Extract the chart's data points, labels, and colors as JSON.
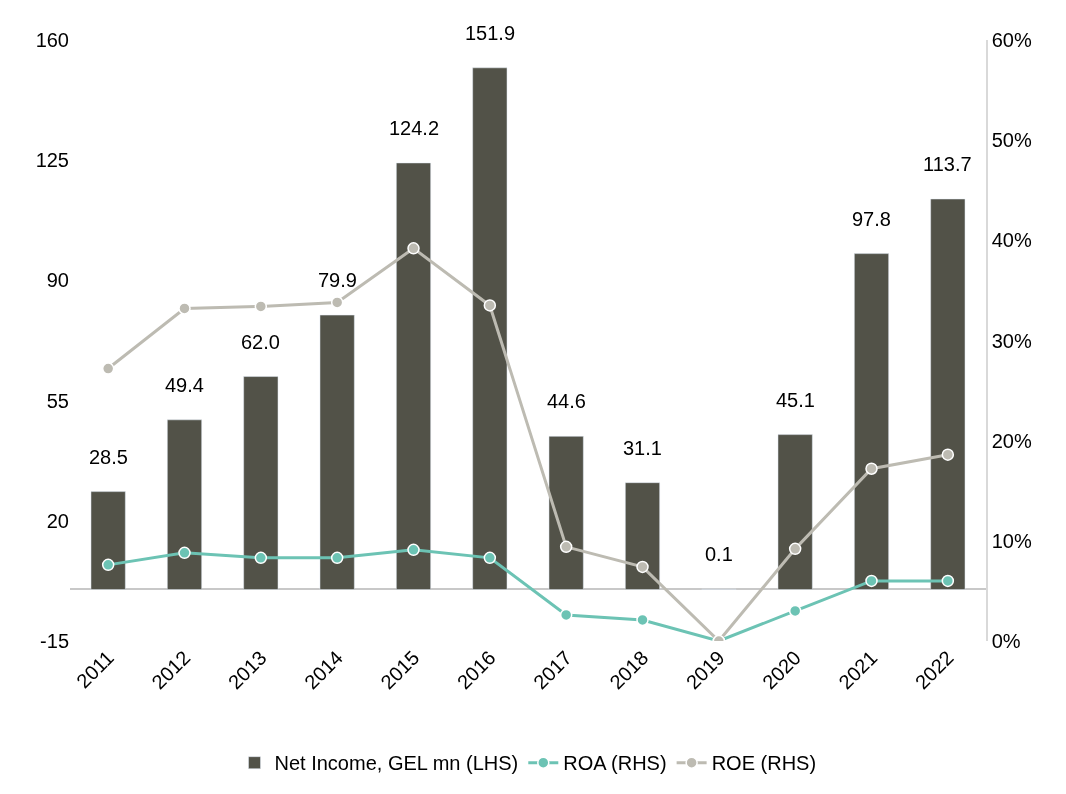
{
  "chart_data": {
    "type": "bar",
    "categories": [
      "2011",
      "2012",
      "2013",
      "2014",
      "2015",
      "2016",
      "2017",
      "2018",
      "2019",
      "2020",
      "2021",
      "2022"
    ],
    "series": [
      {
        "name": "Net Income, GEL mn (LHS)",
        "color": "#525248",
        "values": [
          28.5,
          49.4,
          62.0,
          79.9,
          124.2,
          151.9,
          44.6,
          31.1,
          0.1,
          45.1,
          97.8,
          113.7
        ],
        "value_labels": [
          "28.5",
          "49.4",
          "62.0",
          "79.9",
          "124.2",
          "151.9",
          "44.6",
          "31.1",
          "0.1",
          "45.1",
          "97.8",
          "113.7"
        ]
      },
      {
        "name": "ROA (RHS)",
        "type": "line",
        "axis": "y2",
        "color": "#6cc3b4",
        "values": [
          7.6,
          8.8,
          8.3,
          8.3,
          9.1,
          8.3,
          2.6,
          2.1,
          0,
          3.0,
          6.0,
          6.0
        ]
      },
      {
        "name": "ROE (RHS)",
        "type": "line",
        "axis": "y2",
        "color": "#bdbbb2",
        "values": [
          27.2,
          33.2,
          33.4,
          33.8,
          39.2,
          33.5,
          9.4,
          7.4,
          0,
          9.2,
          17.2,
          18.6
        ]
      }
    ],
    "ylim": [
      -15,
      160
    ],
    "yticks": [
      -15,
      20,
      55,
      90,
      125,
      160
    ],
    "y2lim": [
      0,
      60
    ],
    "y2ticks": [
      {
        "value": 0,
        "label": "0%"
      },
      {
        "value": 10,
        "label": "10%"
      },
      {
        "value": 20,
        "label": "20%"
      },
      {
        "value": 30,
        "label": "30%"
      },
      {
        "value": 40,
        "label": "40%"
      },
      {
        "value": 50,
        "label": "50%"
      },
      {
        "value": 60,
        "label": "60%"
      }
    ],
    "marker": "circle",
    "legend": "bottom"
  }
}
